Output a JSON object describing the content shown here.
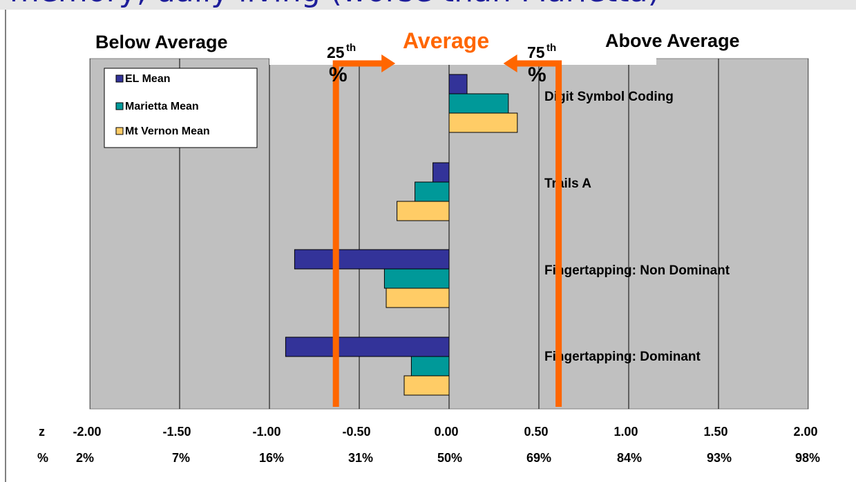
{
  "slide": {
    "title": "memory, daily living (worse than Marietta)"
  },
  "annotations": {
    "below_average": "Below Average",
    "average": "Average",
    "above_average": "Above Average",
    "p25_number": "25",
    "p25_suffix": "th",
    "p75_number": "75",
    "p75_suffix": "th",
    "percent_sign": "%",
    "z_row_label": "z",
    "pct_row_label": "%"
  },
  "colors": {
    "plot_bg": "#c0c0c0",
    "el_mean": "#333399",
    "marietta_mean": "#009999",
    "mt_vernon_mean": "#ffcc66",
    "average_marker": "#ff6600",
    "title": "#1e1e9a"
  },
  "chart_data": {
    "type": "bar",
    "orientation": "horizontal",
    "categories": [
      "Digit Symbol Coding",
      "Trails A",
      "Fingertapping: Non Dominant",
      "Fingertapping: Dominant"
    ],
    "series": [
      {
        "name": "EL Mean",
        "values": [
          0.1,
          -0.09,
          -0.86,
          -0.91
        ]
      },
      {
        "name": "Marietta Mean",
        "values": [
          0.33,
          -0.19,
          -0.36,
          -0.21
        ]
      },
      {
        "name": "Mt Vernon Mean",
        "values": [
          0.38,
          -0.29,
          -0.35,
          -0.25
        ]
      }
    ],
    "xlim": [
      -2.0,
      2.0
    ],
    "x_ticks": [
      "-2.00",
      "-1.50",
      "-1.00",
      "-0.50",
      "0.00",
      "0.50",
      "1.00",
      "1.50",
      "2.00"
    ],
    "percentile_ticks": [
      "2%",
      "7%",
      "16%",
      "31%",
      "50%",
      "69%",
      "84%",
      "93%",
      "98%"
    ],
    "grid": true,
    "legend_position": "top-left",
    "average_band": [
      -0.63,
      0.61
    ]
  }
}
